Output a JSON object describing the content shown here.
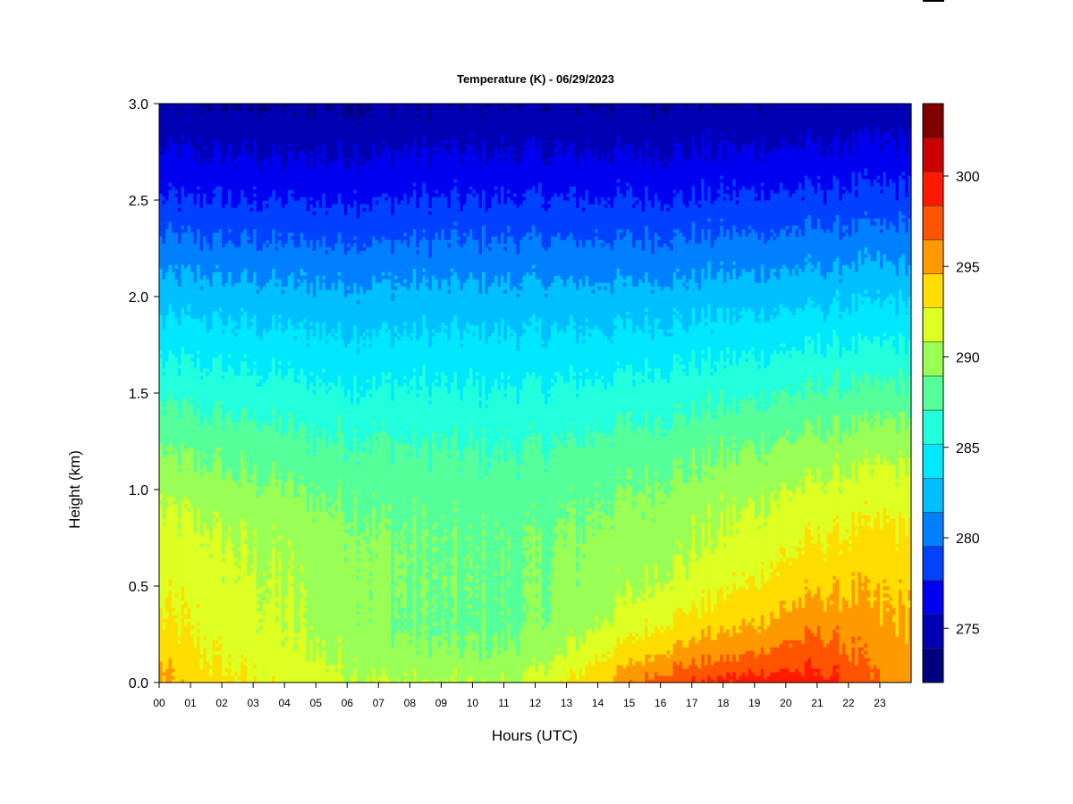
{
  "chart_data": {
    "type": "heatmap",
    "title": "Temperature (K) - 06/29/2023",
    "xlabel": "Hours (UTC)",
    "ylabel": "Height (km)",
    "x_tick_labels": [
      "00",
      "01",
      "02",
      "03",
      "04",
      "05",
      "06",
      "07",
      "08",
      "09",
      "10",
      "11",
      "12",
      "13",
      "14",
      "15",
      "16",
      "17",
      "18",
      "19",
      "20",
      "21",
      "22",
      "23"
    ],
    "x_range": [
      0,
      24
    ],
    "y_tick_labels": [
      "0.0",
      "0.5",
      "1.0",
      "1.5",
      "2.0",
      "2.5",
      "3.0"
    ],
    "y_range": [
      0.0,
      3.0
    ],
    "colorbar": {
      "range": [
        272,
        304
      ],
      "step": 2,
      "tick_labels": [
        "275",
        "280",
        "285",
        "290",
        "295",
        "300"
      ],
      "colors": [
        "#00007f",
        "#0000b2",
        "#0000f0",
        "#0040ff",
        "#0080ff",
        "#00bfff",
        "#00e8ff",
        "#22ffdd",
        "#55ff99",
        "#99ff55",
        "#ddff22",
        "#ffdd00",
        "#ff9900",
        "#ff5500",
        "#ff1a00",
        "#cc0000",
        "#800000"
      ]
    },
    "profile_heights_km": [
      0.0,
      0.15,
      0.3,
      0.5,
      0.75,
      1.0,
      1.25,
      1.5,
      1.75,
      2.0,
      2.25,
      2.5,
      2.75,
      3.0
    ],
    "profiles": [
      {
        "hour": 0,
        "temps": [
          296.8,
          295.5,
          294.2,
          293.6,
          292.9,
          291.5,
          289.6,
          287.4,
          285.3,
          283.1,
          280.7,
          278.2,
          276.1,
          274.2
        ]
      },
      {
        "hour": 1,
        "temps": [
          295.2,
          294.4,
          293.8,
          293.3,
          292.6,
          291.2,
          289.4,
          287.3,
          285.2,
          283.0,
          280.6,
          278.1,
          276.0,
          274.1
        ]
      },
      {
        "hour": 2,
        "temps": [
          294.5,
          293.6,
          293.1,
          292.7,
          292.1,
          290.8,
          289.1,
          287.1,
          285.0,
          282.9,
          280.5,
          278.0,
          275.9,
          274.0
        ]
      },
      {
        "hour": 3,
        "temps": [
          294.0,
          293.1,
          292.6,
          292.3,
          291.7,
          290.4,
          288.8,
          286.9,
          284.9,
          282.8,
          280.4,
          277.9,
          275.8,
          273.9
        ]
      },
      {
        "hour": 4,
        "temps": [
          293.5,
          292.7,
          292.1,
          291.9,
          291.4,
          290.1,
          288.5,
          286.7,
          284.7,
          282.7,
          280.3,
          277.9,
          275.8,
          273.9
        ]
      },
      {
        "hour": 5,
        "temps": [
          293.0,
          292.1,
          291.5,
          291.4,
          291.0,
          289.8,
          288.3,
          286.5,
          284.6,
          282.6,
          280.3,
          277.9,
          275.8,
          274.0
        ]
      },
      {
        "hour": 6,
        "temps": [
          292.5,
          291.5,
          290.9,
          290.9,
          290.6,
          289.6,
          288.2,
          286.4,
          284.5,
          282.6,
          280.3,
          277.9,
          275.9,
          274.0
        ]
      },
      {
        "hour": 7,
        "temps": [
          292.2,
          291.0,
          290.3,
          290.4,
          290.2,
          289.4,
          288.1,
          286.3,
          284.5,
          282.6,
          280.3,
          278.0,
          275.9,
          274.1
        ]
      },
      {
        "hour": 8,
        "temps": [
          291.9,
          290.6,
          289.8,
          290.0,
          289.9,
          289.2,
          288.0,
          286.3,
          284.5,
          282.6,
          280.4,
          278.1,
          276.0,
          274.1
        ]
      },
      {
        "hour": 9,
        "temps": [
          291.8,
          290.4,
          289.6,
          289.8,
          289.7,
          289.1,
          287.9,
          286.3,
          284.5,
          282.7,
          280.4,
          278.1,
          276.0,
          274.2
        ]
      },
      {
        "hour": 10,
        "temps": [
          291.8,
          290.3,
          289.5,
          289.6,
          289.6,
          289.0,
          287.8,
          286.3,
          284.5,
          282.7,
          280.4,
          278.1,
          276.0,
          274.2
        ]
      },
      {
        "hour": 11,
        "temps": [
          291.9,
          290.4,
          289.6,
          289.6,
          289.6,
          289.0,
          287.8,
          286.3,
          284.5,
          282.7,
          280.4,
          278.1,
          276.0,
          274.2
        ]
      },
      {
        "hour": 12,
        "temps": [
          292.6,
          291.0,
          290.0,
          289.8,
          289.7,
          289.1,
          287.9,
          286.3,
          284.5,
          282.7,
          280.4,
          278.1,
          276.0,
          274.2
        ]
      },
      {
        "hour": 13,
        "temps": [
          294.0,
          292.2,
          291.0,
          290.4,
          290.1,
          289.4,
          288.0,
          286.4,
          284.5,
          282.6,
          280.4,
          278.1,
          276.0,
          274.2
        ]
      },
      {
        "hour": 14,
        "temps": [
          295.8,
          293.6,
          292.0,
          291.0,
          290.5,
          289.7,
          288.3,
          286.6,
          284.6,
          282.7,
          280.4,
          278.1,
          276.0,
          274.2
        ]
      },
      {
        "hour": 15,
        "temps": [
          297.6,
          295.0,
          293.0,
          291.6,
          290.9,
          290.0,
          288.6,
          286.8,
          284.8,
          282.8,
          280.5,
          278.1,
          276.0,
          274.2
        ]
      },
      {
        "hour": 16,
        "temps": [
          299.2,
          296.2,
          294.0,
          292.3,
          291.3,
          290.4,
          288.9,
          287.0,
          285.0,
          282.9,
          280.5,
          278.1,
          276.0,
          274.2
        ]
      },
      {
        "hour": 17,
        "temps": [
          300.0,
          297.0,
          294.8,
          292.9,
          291.8,
          290.7,
          289.2,
          287.2,
          285.1,
          283.0,
          280.6,
          278.2,
          276.1,
          274.2
        ]
      },
      {
        "hour": 18,
        "temps": [
          300.5,
          297.6,
          295.4,
          293.5,
          292.3,
          291.1,
          289.5,
          287.5,
          285.3,
          283.1,
          280.7,
          278.3,
          276.1,
          274.3
        ]
      },
      {
        "hour": 19,
        "temps": [
          301.0,
          298.2,
          296.0,
          294.1,
          292.8,
          291.5,
          289.8,
          287.7,
          285.5,
          283.2,
          280.8,
          278.3,
          276.2,
          274.3
        ]
      },
      {
        "hour": 20,
        "temps": [
          301.2,
          298.8,
          296.8,
          295.0,
          293.4,
          292.0,
          290.2,
          288.0,
          285.7,
          283.4,
          280.9,
          278.4,
          276.3,
          274.4
        ]
      },
      {
        "hour": 21,
        "temps": [
          300.8,
          299.0,
          297.4,
          295.6,
          294.0,
          292.4,
          290.5,
          288.2,
          285.9,
          283.5,
          281.0,
          278.5,
          276.3,
          274.4
        ]
      },
      {
        "hour": 22,
        "temps": [
          299.8,
          298.2,
          297.0,
          295.7,
          294.3,
          292.7,
          290.8,
          288.4,
          286.0,
          283.6,
          281.1,
          278.6,
          276.4,
          274.5
        ]
      },
      {
        "hour": 23,
        "temps": [
          297.8,
          297.1,
          296.3,
          295.6,
          294.4,
          292.9,
          291.0,
          288.6,
          286.1,
          283.7,
          281.2,
          278.7,
          276.5,
          274.6
        ]
      },
      {
        "hour": 24,
        "temps": [
          297.0,
          296.6,
          296.0,
          295.5,
          294.4,
          293.0,
          291.1,
          288.7,
          286.2,
          283.8,
          281.3,
          278.8,
          276.6,
          274.7
        ]
      }
    ]
  }
}
